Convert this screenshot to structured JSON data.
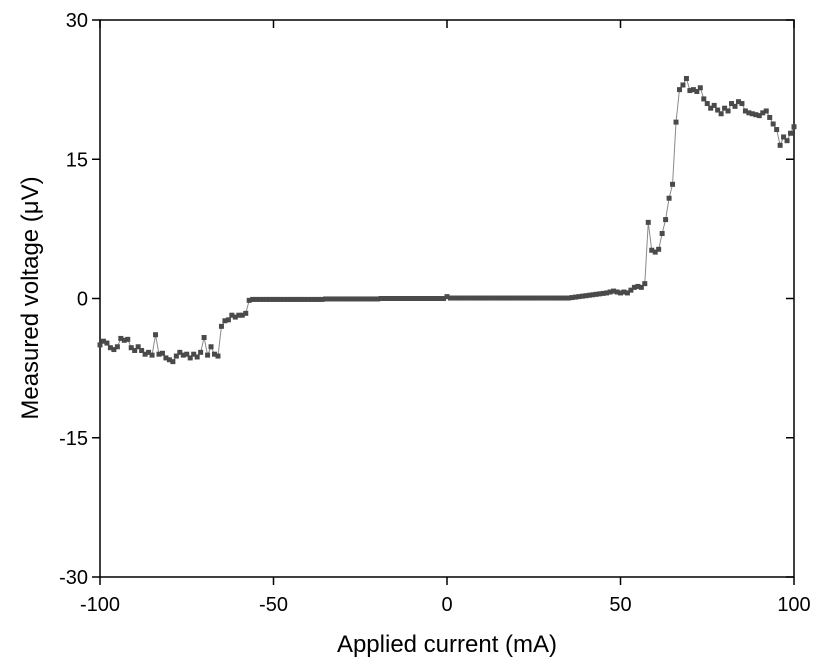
{
  "chart_data": {
    "type": "line",
    "x_label": "Applied current (mA)",
    "y_label": "Measured voltage (μV)",
    "xlim": [
      -100,
      100
    ],
    "xticks": [
      -100,
      -50,
      0,
      50,
      100
    ],
    "ylim": [
      -30,
      30
    ],
    "yticks": [
      -30,
      -15,
      0,
      15,
      30
    ],
    "series": [
      {
        "color": "#4a4a4a",
        "x": [
          -100,
          -99,
          -98,
          -97,
          -96,
          -95,
          -94,
          -93,
          -92,
          -91,
          -90,
          -89,
          -88,
          -87,
          -86,
          -85,
          -84,
          -83,
          -82,
          -81,
          -80,
          -79,
          -78,
          -77,
          -76,
          -75,
          -74,
          -73,
          -72,
          -71,
          -70,
          -69,
          -68,
          -67,
          -66,
          -65,
          -64,
          -63,
          -62,
          -61,
          -60,
          -59,
          -58,
          -57,
          -56,
          -55,
          -54,
          -53,
          -52,
          -51,
          -50,
          -49,
          -48,
          -47,
          -46,
          -45,
          -44,
          -43,
          -42,
          -41,
          -40,
          -39,
          -38,
          -37,
          -36,
          -35,
          -34,
          -33,
          -32,
          -31,
          -30,
          -29,
          -28,
          -27,
          -26,
          -25,
          -24,
          -23,
          -22,
          -21,
          -20,
          -19,
          -18,
          -17,
          -16,
          -15,
          -14,
          -13,
          -12,
          -11,
          -10,
          -9,
          -8,
          -7,
          -6,
          -5,
          -4,
          -3,
          -2,
          -1,
          0,
          1,
          2,
          3,
          4,
          5,
          6,
          7,
          8,
          9,
          10,
          11,
          12,
          13,
          14,
          15,
          16,
          17,
          18,
          19,
          20,
          21,
          22,
          23,
          24,
          25,
          26,
          27,
          28,
          29,
          30,
          31,
          32,
          33,
          34,
          35,
          36,
          37,
          38,
          39,
          40,
          41,
          42,
          43,
          44,
          45,
          46,
          47,
          48,
          49,
          50,
          51,
          52,
          53,
          54,
          55,
          56,
          57,
          58,
          59,
          60,
          61,
          62,
          63,
          64,
          65,
          66,
          67,
          68,
          69,
          70,
          71,
          72,
          73,
          74,
          75,
          76,
          77,
          78,
          79,
          80,
          81,
          82,
          83,
          84,
          85,
          86,
          87,
          88,
          89,
          90,
          91,
          92,
          93,
          94,
          95,
          96,
          97,
          98,
          99,
          100
        ],
        "values": [
          -5.0,
          -4.6,
          -4.8,
          -5.3,
          -5.5,
          -5.2,
          -4.3,
          -4.5,
          -4.4,
          -5.3,
          -5.6,
          -5.2,
          -5.6,
          -6.0,
          -5.8,
          -6.1,
          -3.9,
          -6.0,
          -5.9,
          -6.4,
          -6.6,
          -6.8,
          -6.2,
          -5.8,
          -6.1,
          -6.0,
          -6.4,
          -6.0,
          -6.3,
          -5.8,
          -4.2,
          -6.1,
          -5.2,
          -6.0,
          -6.2,
          -3.0,
          -2.4,
          -2.3,
          -1.8,
          -2.0,
          -1.8,
          -1.8,
          -1.6,
          -0.2,
          -0.1,
          -0.1,
          -0.1,
          -0.1,
          -0.1,
          -0.1,
          -0.1,
          -0.1,
          -0.1,
          -0.1,
          -0.1,
          -0.1,
          -0.1,
          -0.1,
          -0.1,
          -0.1,
          -0.1,
          -0.1,
          -0.1,
          -0.1,
          -0.1,
          -0.05,
          -0.05,
          -0.05,
          -0.05,
          -0.05,
          -0.05,
          -0.05,
          -0.05,
          -0.05,
          -0.05,
          -0.05,
          -0.05,
          -0.05,
          -0.05,
          -0.05,
          -0.05,
          0,
          0,
          0,
          0,
          0,
          0,
          0,
          0,
          0,
          0,
          0,
          0,
          0,
          0,
          0,
          0,
          0,
          0,
          0,
          0.2,
          0.05,
          0.05,
          0.05,
          0.05,
          0.05,
          0.05,
          0.05,
          0.05,
          0.05,
          0.05,
          0.05,
          0.05,
          0.05,
          0.05,
          0.05,
          0.05,
          0.05,
          0.05,
          0.05,
          0.05,
          0.05,
          0.05,
          0.05,
          0.05,
          0.05,
          0.05,
          0.05,
          0.05,
          0.05,
          0.05,
          0.05,
          0.05,
          0.05,
          0.05,
          0.05,
          0.1,
          0.15,
          0.2,
          0.25,
          0.3,
          0.35,
          0.4,
          0.45,
          0.5,
          0.55,
          0.6,
          0.7,
          0.8,
          0.7,
          0.6,
          0.7,
          0.6,
          0.9,
          1.2,
          1.3,
          1.2,
          1.6,
          8.2,
          5.2,
          5.0,
          5.3,
          7.0,
          8.5,
          10.8,
          12.3,
          19.0,
          22.5,
          23.0,
          23.7,
          22.4,
          22.5,
          22.3,
          22.7,
          21.5,
          21.0,
          20.5,
          20.8,
          20.3,
          19.9,
          20.5,
          20.2,
          21.0,
          20.7,
          21.2,
          21.0,
          20.2,
          20.0,
          19.9,
          19.8,
          19.7,
          20.0,
          20.2,
          19.5,
          18.8,
          18.2,
          16.5,
          17.4,
          17.0,
          17.8,
          18.5
        ]
      }
    ]
  }
}
